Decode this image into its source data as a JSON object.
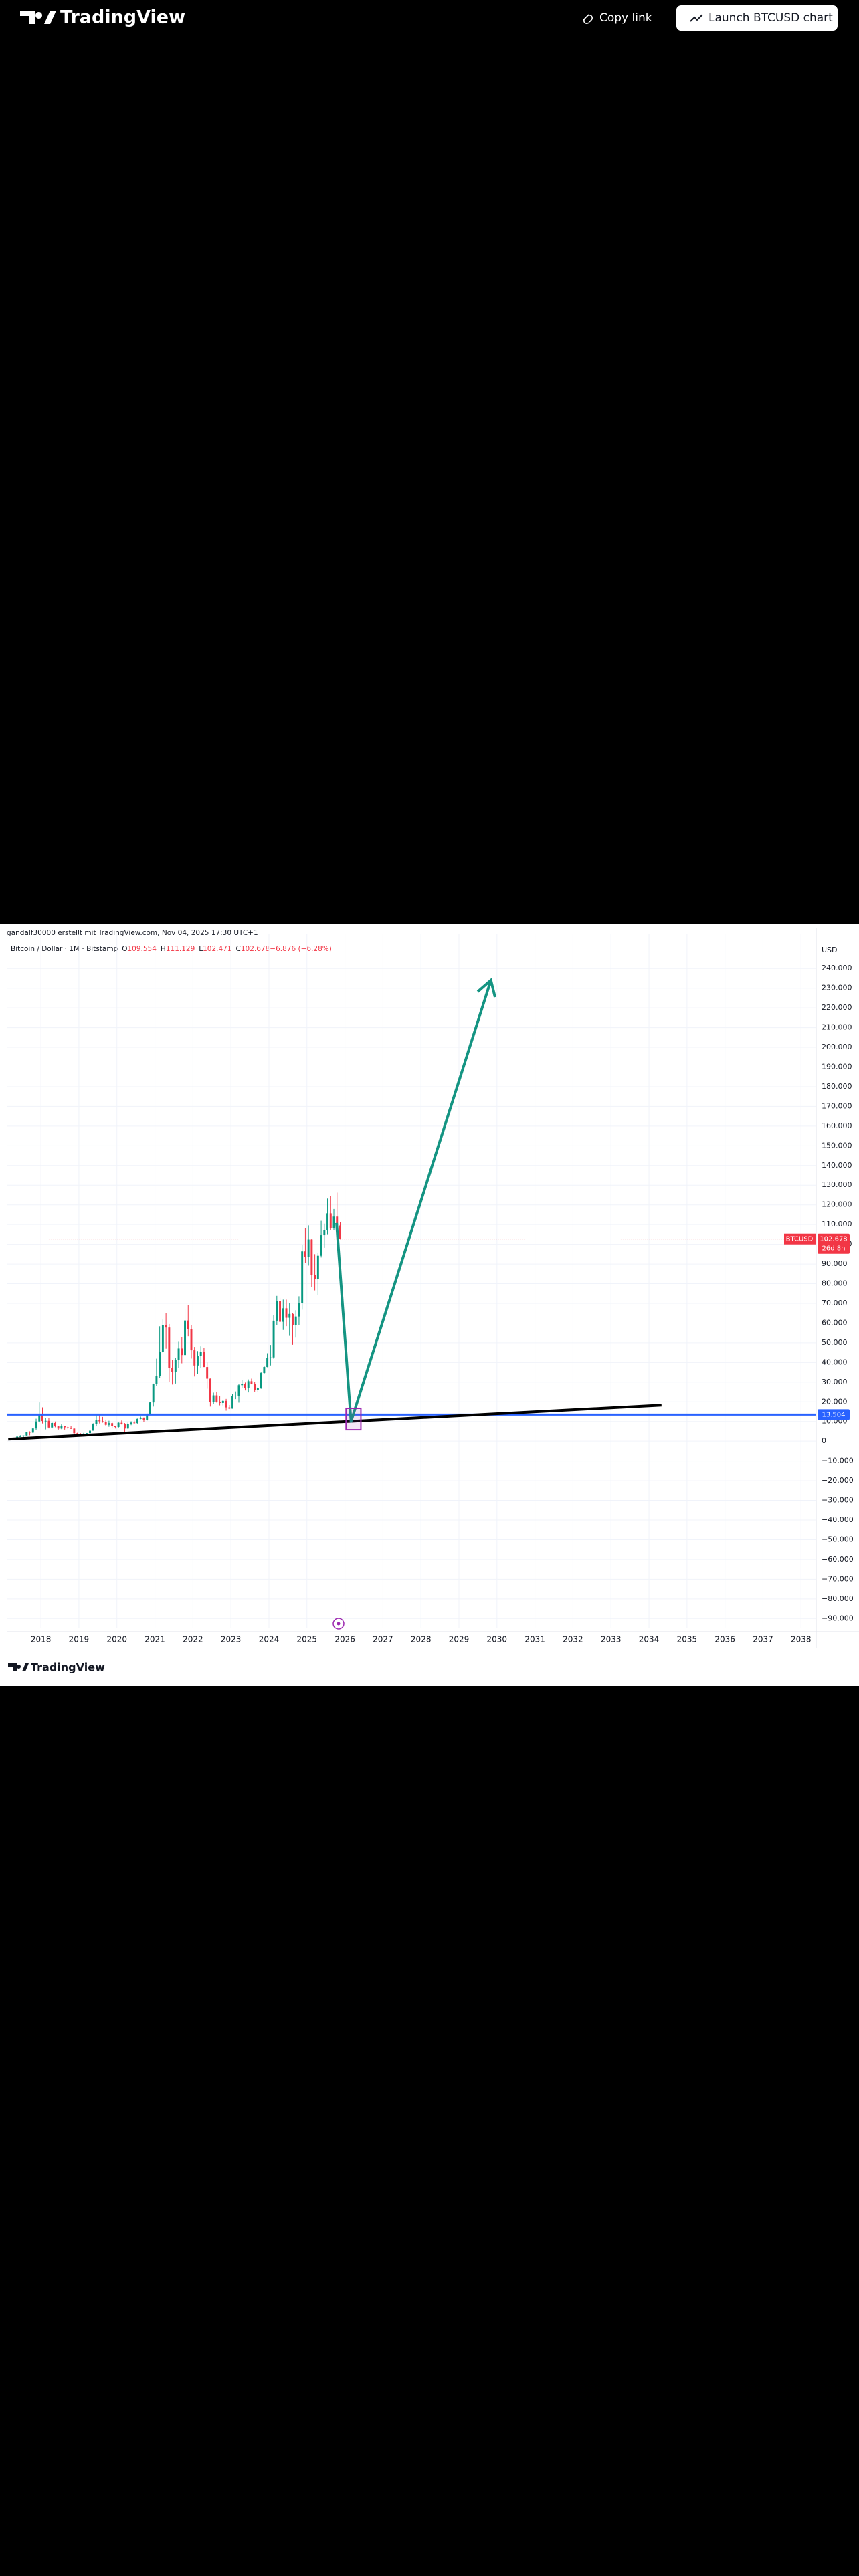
{
  "header": {
    "logo": "TradingView",
    "copy_link": "Copy link",
    "launch": "Launch BTCUSD chart"
  },
  "chart_data": {
    "type": "candlestick",
    "attribution": "gandalf30000 erstellt mit TradingView.com, Nov 04, 2025 17:30 UTC+1",
    "symbol": "Bitcoin / Dollar · 1M · Bitstamp",
    "ohlc_legend": [
      {
        "label": "O",
        "value": "109.554"
      },
      {
        "label": "H",
        "value": "111.129"
      },
      {
        "label": "L",
        "value": "102.471"
      },
      {
        "label": "C",
        "value": "102.678"
      },
      {
        "label": "",
        "value": "−6.876 (−6.28%)"
      }
    ],
    "y_unit": "USD",
    "up_color": "#089981",
    "down_color": "#f23645",
    "x": [
      "2017-03",
      "2017-04",
      "2017-05",
      "2017-06",
      "2017-07",
      "2017-08",
      "2017-09",
      "2017-10",
      "2017-11",
      "2017-12",
      "2018-01",
      "2018-02",
      "2018-03",
      "2018-04",
      "2018-05",
      "2018-06",
      "2018-07",
      "2018-08",
      "2018-09",
      "2018-10",
      "2018-11",
      "2018-12",
      "2019-01",
      "2019-02",
      "2019-03",
      "2019-04",
      "2019-05",
      "2019-06",
      "2019-07",
      "2019-08",
      "2019-09",
      "2019-10",
      "2019-11",
      "2019-12",
      "2020-01",
      "2020-02",
      "2020-03",
      "2020-04",
      "2020-05",
      "2020-06",
      "2020-07",
      "2020-08",
      "2020-09",
      "2020-10",
      "2020-11",
      "2020-12",
      "2021-01",
      "2021-02",
      "2021-03",
      "2021-04",
      "2021-05",
      "2021-06",
      "2021-07",
      "2021-08",
      "2021-09",
      "2021-10",
      "2021-11",
      "2021-12",
      "2022-01",
      "2022-02",
      "2022-03",
      "2022-04",
      "2022-05",
      "2022-06",
      "2022-07",
      "2022-08",
      "2022-09",
      "2022-10",
      "2022-11",
      "2022-12",
      "2023-01",
      "2023-02",
      "2023-03",
      "2023-04",
      "2023-05",
      "2023-06",
      "2023-07",
      "2023-08",
      "2023-09",
      "2023-10",
      "2023-11",
      "2023-12",
      "2024-01",
      "2024-02",
      "2024-03",
      "2024-04",
      "2024-05",
      "2024-06",
      "2024-07",
      "2024-08",
      "2024-09",
      "2024-10",
      "2024-11",
      "2024-12",
      "2025-01",
      "2025-02",
      "2025-03",
      "2025-04",
      "2025-05",
      "2025-06",
      "2025-07",
      "2025-08",
      "2025-09",
      "2025-10",
      "2025-11"
    ],
    "open": [
      968,
      1080,
      1350,
      2300,
      2480,
      2875,
      4700,
      4340,
      6450,
      10000,
      13850,
      10220,
      10330,
      6930,
      9240,
      7500,
      6390,
      7730,
      7030,
      6630,
      6370,
      4020,
      3740,
      3460,
      3820,
      4100,
      5320,
      8570,
      10820,
      10080,
      9600,
      8290,
      9150,
      7550,
      7190,
      9350,
      8540,
      6410,
      8630,
      9450,
      9140,
      11350,
      11660,
      10780,
      13800,
      19700,
      28990,
      33110,
      45240,
      58800,
      57720,
      37330,
      35040,
      41460,
      47100,
      43790,
      61300,
      57000,
      46200,
      38480,
      43190,
      45540,
      37710,
      31790,
      19940,
      23300,
      20050,
      19430,
      20490,
      17170,
      16540,
      23140,
      23150,
      28480,
      29250,
      27220,
      30480,
      29230,
      25940,
      26970,
      34670,
      37720,
      42280,
      42580,
      61200,
      71300,
      60640,
      67500,
      62680,
      64630,
      58970,
      63330,
      70220,
      96400,
      93430,
      102400,
      84350,
      82530,
      94200,
      104600,
      107100,
      115700,
      108200,
      114050,
      109554
    ],
    "high": [
      1290,
      1350,
      2760,
      3000,
      2920,
      4740,
      5000,
      6470,
      11400,
      19700,
      17200,
      11790,
      11700,
      9770,
      9990,
      7780,
      8500,
      7760,
      7410,
      7670,
      6600,
      4250,
      4110,
      4200,
      4140,
      5640,
      9070,
      13880,
      13200,
      12330,
      10950,
      10370,
      9520,
      7750,
      9600,
      10500,
      9200,
      9470,
      10080,
      10380,
      11450,
      12480,
      12080,
      14100,
      19880,
      29300,
      41950,
      58350,
      61800,
      64900,
      59500,
      41300,
      42300,
      50500,
      52900,
      67000,
      69000,
      59100,
      47900,
      45800,
      48200,
      47500,
      40000,
      31900,
      24700,
      25200,
      22800,
      21000,
      21500,
      18400,
      23900,
      25300,
      29200,
      31000,
      29800,
      31400,
      31800,
      30200,
      27500,
      35200,
      38400,
      44700,
      48900,
      64000,
      73800,
      72800,
      71900,
      71900,
      70000,
      65000,
      66500,
      73600,
      99800,
      108300,
      109600,
      102800,
      95000,
      95700,
      111900,
      110500,
      123200,
      124500,
      117900,
      126200,
      111129
    ],
    "low": [
      890,
      1060,
      1350,
      2100,
      1840,
      2670,
      2970,
      4110,
      5500,
      9500,
      9000,
      5970,
      6450,
      6430,
      7050,
      5780,
      6080,
      5880,
      6110,
      6200,
      3560,
      3120,
      3350,
      3370,
      3770,
      4080,
      5320,
      7500,
      9000,
      9400,
      7710,
      7300,
      6540,
      6430,
      6870,
      8470,
      3850,
      6150,
      8120,
      8900,
      8970,
      11120,
      9880,
      10370,
      13200,
      17600,
      28100,
      32300,
      45000,
      47000,
      30000,
      28800,
      29300,
      37300,
      39600,
      43300,
      53300,
      42000,
      32900,
      34300,
      37200,
      37700,
      26700,
      17600,
      18800,
      19600,
      18200,
      18200,
      15500,
      16300,
      16500,
      21400,
      19600,
      26900,
      25800,
      24800,
      28900,
      25200,
      24900,
      26600,
      34100,
      37600,
      38500,
      41900,
      59100,
      59600,
      56500,
      58400,
      53500,
      49000,
      52600,
      58900,
      66800,
      90500,
      89200,
      78200,
      76600,
      74400,
      93300,
      98200,
      105100,
      107300,
      107200,
      103000,
      102471
    ],
    "close": [
      1080,
      1350,
      2300,
      2480,
      2875,
      4700,
      4340,
      6450,
      10000,
      13850,
      10220,
      10330,
      6930,
      9240,
      7500,
      6390,
      7730,
      7030,
      6630,
      6370,
      4020,
      3740,
      3460,
      3820,
      4100,
      5320,
      8570,
      10820,
      10080,
      9600,
      8290,
      9150,
      7550,
      7190,
      9350,
      8540,
      6410,
      8630,
      9450,
      9140,
      11350,
      11660,
      10780,
      13800,
      19700,
      28990,
      33110,
      45240,
      58800,
      57720,
      37330,
      35040,
      41460,
      47100,
      43790,
      61300,
      57000,
      46200,
      38480,
      43190,
      45540,
      37710,
      31790,
      19940,
      23300,
      20050,
      19430,
      20490,
      17170,
      16540,
      23140,
      23150,
      28480,
      29250,
      27220,
      30480,
      29230,
      25940,
      26970,
      34670,
      37720,
      42280,
      42580,
      61200,
      71300,
      60640,
      67500,
      62680,
      64630,
      58970,
      63330,
      70220,
      96400,
      93430,
      102400,
      84350,
      82530,
      94200,
      104600,
      107100,
      115700,
      108200,
      114050,
      109554,
      102678
    ],
    "xlim": [
      2017.1,
      2038.4
    ],
    "xticks": [
      2018,
      2019,
      2020,
      2021,
      2022,
      2023,
      2024,
      2025,
      2026,
      2027,
      2028,
      2029,
      2030,
      2031,
      2032,
      2033,
      2034,
      2035,
      2036,
      2037,
      2038
    ],
    "ylim": [
      -95000,
      254000
    ],
    "yticks": [
      {
        "value": 240000,
        "label": "240.000"
      },
      {
        "value": 230000,
        "label": "230.000"
      },
      {
        "value": 220000,
        "label": "220.000"
      },
      {
        "value": 210000,
        "label": "210.000"
      },
      {
        "value": 200000,
        "label": "200.000"
      },
      {
        "value": 190000,
        "label": "190.000"
      },
      {
        "value": 180000,
        "label": "180.000"
      },
      {
        "value": 170000,
        "label": "170.000"
      },
      {
        "value": 160000,
        "label": "160.000"
      },
      {
        "value": 150000,
        "label": "150.000"
      },
      {
        "value": 140000,
        "label": "140.000"
      },
      {
        "value": 130000,
        "label": "130.000"
      },
      {
        "value": 120000,
        "label": "120.000"
      },
      {
        "value": 110000,
        "label": "110.000"
      },
      {
        "value": 100000,
        "label": "100.000"
      },
      {
        "value": 90000,
        "label": "90.000"
      },
      {
        "value": 80000,
        "label": "80.000"
      },
      {
        "value": 70000,
        "label": "70.000"
      },
      {
        "value": 60000,
        "label": "60.000"
      },
      {
        "value": 50000,
        "label": "50.000"
      },
      {
        "value": 40000,
        "label": "40.000"
      },
      {
        "value": 30000,
        "label": "30.000"
      },
      {
        "value": 20000,
        "label": "20.000"
      },
      {
        "value": 10000,
        "label": "10.000"
      },
      0,
      {
        "value": -10000,
        "label": "−10.000"
      },
      {
        "value": -20000,
        "label": "−20.000"
      },
      {
        "value": -30000,
        "label": "−30.000"
      },
      {
        "value": -40000,
        "label": "−40.000"
      },
      {
        "value": -50000,
        "label": "−50.000"
      },
      {
        "value": -60000,
        "label": "−60.000"
      },
      {
        "value": -70000,
        "label": "−70.000"
      },
      {
        "value": -80000,
        "label": "−80.000"
      },
      {
        "value": -90000,
        "label": "−90.000"
      }
    ],
    "grid": true,
    "price_line": {
      "symbol": "BTCUSD",
      "value": 102678,
      "label": "102.678",
      "countdown": "26d 8h",
      "color": "#f23645"
    },
    "horizontal_line": {
      "value": 13504,
      "label": "13.504",
      "color": "#2962ff"
    },
    "trend_line": {
      "color": "#000000",
      "points": [
        [
          2017.14,
          1000
        ],
        [
          2034.33,
          18300
        ]
      ]
    },
    "projection": {
      "color": "#149482",
      "points": [
        [
          2025.78,
          110800
        ],
        [
          2026.16,
          10000
        ],
        [
          2029.84,
          234000
        ]
      ]
    },
    "rectangle": {
      "color": "#9c27b0",
      "x": [
        2026.03,
        2026.42
      ],
      "y": [
        5800,
        16700
      ]
    }
  },
  "footer": {
    "logo": "TradingView"
  }
}
